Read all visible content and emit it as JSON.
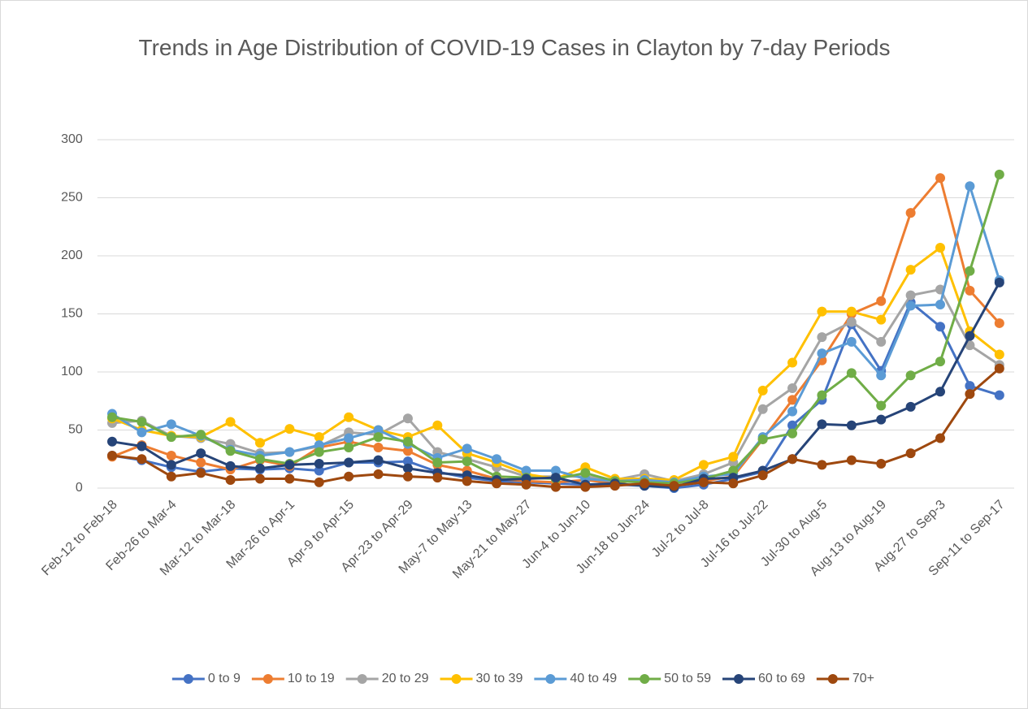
{
  "chart_data": {
    "type": "line",
    "title": "Trends in Age Distribution of COVID-19 Cases in Clayton by 7-day Periods",
    "categories": [
      "Feb-12 to Feb-18",
      null,
      "Feb-26 to Mar-4",
      null,
      "Mar-12 to Mar-18",
      null,
      "Mar-26 to Apr-1",
      null,
      "Apr-9 to Apr-15",
      null,
      "Apr-23 to Apr-29",
      null,
      "May-7 to May-13",
      null,
      "May-21 to May-27",
      null,
      "Jun-4 to Jun-10",
      null,
      "Jun-18 to Jun-24",
      null,
      "Jul-2 to Jul-8",
      null,
      "Jul-16 to Jul-22",
      null,
      "Jul-30 to Aug-5",
      null,
      "Aug-13 to Aug-19",
      null,
      "Aug-27 to Sep-3",
      null,
      "Sep-11 to Sep-17"
    ],
    "series": [
      {
        "name": "0 to 9",
        "color": "#4472c4",
        "values": [
          28,
          24,
          18,
          14,
          17,
          16,
          17,
          15,
          22,
          22,
          23,
          14,
          9,
          6,
          5,
          4,
          3,
          3,
          2,
          0,
          3,
          8,
          14,
          54,
          76,
          141,
          101,
          160,
          139,
          88,
          80
        ]
      },
      {
        "name": "10 to 19",
        "color": "#ed7d31",
        "values": [
          27,
          37,
          28,
          22,
          16,
          24,
          19,
          35,
          40,
          35,
          32,
          20,
          15,
          8,
          6,
          5,
          7,
          4,
          8,
          5,
          6,
          10,
          42,
          76,
          110,
          150,
          161,
          237,
          267,
          170,
          142
        ]
      },
      {
        "name": "20 to 29",
        "color": "#a5a5a5",
        "values": [
          56,
          58,
          45,
          43,
          38,
          30,
          31,
          36,
          48,
          46,
          60,
          31,
          25,
          18,
          10,
          10,
          10,
          7,
          12,
          6,
          12,
          22,
          68,
          86,
          130,
          143,
          126,
          166,
          171,
          123,
          106
        ]
      },
      {
        "name": "30 to 39",
        "color": "#ffc000",
        "values": [
          60,
          50,
          45,
          44,
          57,
          39,
          51,
          44,
          61,
          50,
          44,
          54,
          30,
          22,
          12,
          8,
          18,
          8,
          8,
          7,
          20,
          27,
          84,
          108,
          152,
          152,
          145,
          188,
          207,
          135,
          115
        ]
      },
      {
        "name": "40 to 49",
        "color": "#5b9bd5",
        "values": [
          64,
          48,
          55,
          45,
          33,
          28,
          31,
          37,
          43,
          50,
          38,
          26,
          34,
          25,
          15,
          15,
          8,
          6,
          7,
          5,
          10,
          12,
          44,
          66,
          116,
          126,
          97,
          157,
          158,
          260,
          179
        ]
      },
      {
        "name": "50 to 59",
        "color": "#70ad47",
        "values": [
          61,
          57,
          44,
          46,
          32,
          25,
          21,
          31,
          35,
          44,
          40,
          22,
          23,
          10,
          9,
          8,
          13,
          6,
          5,
          4,
          8,
          15,
          42,
          47,
          80,
          99,
          71,
          97,
          109,
          187,
          270
        ]
      },
      {
        "name": "60 to 69",
        "color": "#264478",
        "values": [
          40,
          36,
          20,
          30,
          19,
          17,
          20,
          21,
          22,
          24,
          17,
          13,
          11,
          7,
          8,
          9,
          3,
          4,
          2,
          1,
          8,
          9,
          15,
          25,
          55,
          54,
          59,
          70,
          83,
          131,
          177
        ]
      },
      {
        "name": "70+",
        "color": "#9e480e",
        "values": [
          28,
          25,
          10,
          13,
          7,
          8,
          8,
          5,
          10,
          12,
          10,
          9,
          6,
          4,
          3,
          1,
          1,
          2,
          4,
          2,
          5,
          4,
          11,
          25,
          20,
          24,
          21,
          30,
          43,
          81,
          103
        ]
      }
    ],
    "ylim": [
      0,
      300
    ],
    "yticks": [
      0,
      50,
      100,
      150,
      200,
      250,
      300
    ],
    "grid": true,
    "legend": "bottom"
  }
}
